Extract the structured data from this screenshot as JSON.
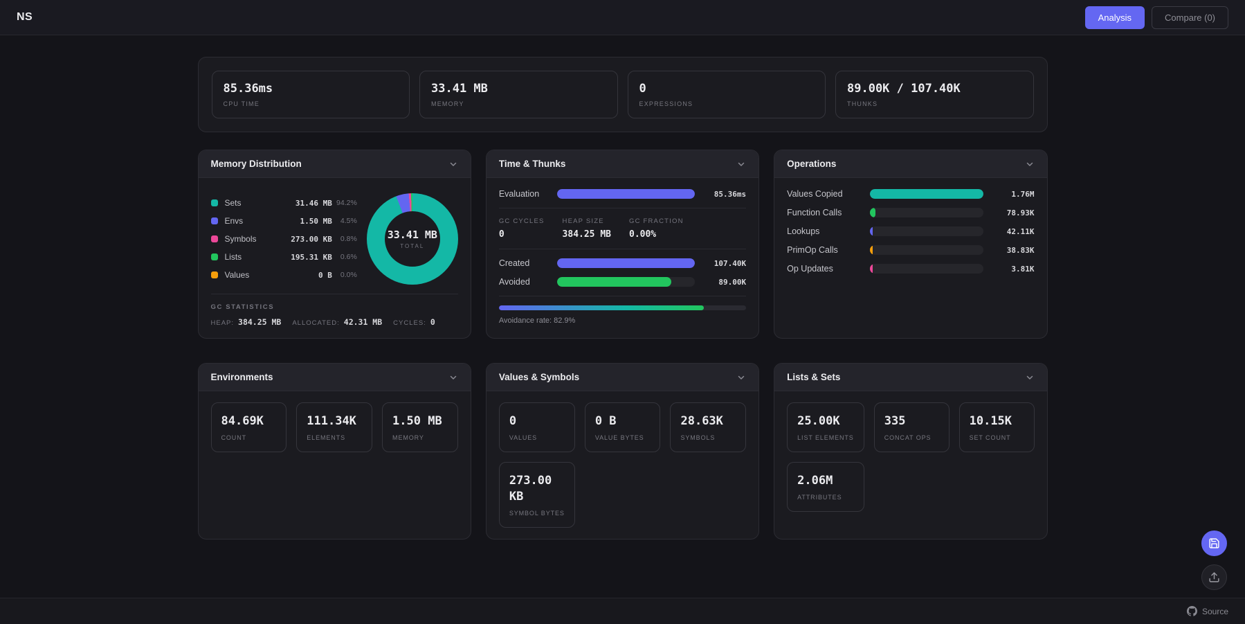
{
  "topbar": {
    "logo": "NS",
    "analysis_label": "Analysis",
    "compare_label": "Compare (0)"
  },
  "summary": {
    "cards": [
      {
        "value": "85.36ms",
        "label": "CPU TIME"
      },
      {
        "value": "33.41 MB",
        "label": "MEMORY"
      },
      {
        "value": "0",
        "label": "EXPRESSIONS"
      },
      {
        "value": "89.00K / 107.40K",
        "label": "THUNKS"
      }
    ]
  },
  "memory_distribution": {
    "title": "Memory Distribution",
    "items": [
      {
        "label": "Sets",
        "value": "31.46 MB",
        "pct_label": "94.2%",
        "pct": 94.2,
        "color": "#14b8a6"
      },
      {
        "label": "Envs",
        "value": "1.50 MB",
        "pct_label": "4.5%",
        "pct": 4.5,
        "color": "#6366f1"
      },
      {
        "label": "Symbols",
        "value": "273.00 KB",
        "pct_label": "0.8%",
        "pct": 0.8,
        "color": "#ec4899"
      },
      {
        "label": "Lists",
        "value": "195.31 KB",
        "pct_label": "0.6%",
        "pct": 0.6,
        "color": "#22c55e"
      },
      {
        "label": "Values",
        "value": "0 B",
        "pct_label": "0.0%",
        "pct": 0.0,
        "color": "#f59e0b"
      }
    ],
    "total_value": "33.41 MB",
    "total_label": "TOTAL",
    "gc": {
      "heading": "GC STATISTICS",
      "stats": [
        {
          "label": "HEAP:",
          "value": "384.25 MB"
        },
        {
          "label": "ALLOCATED:",
          "value": "42.31 MB"
        },
        {
          "label": "CYCLES:",
          "value": "0"
        }
      ]
    }
  },
  "time_thunks": {
    "title": "Time & Thunks",
    "evaluation": {
      "label": "Evaluation",
      "value": "85.36ms",
      "pct": 100,
      "color": "#6366f1"
    },
    "gc_row": [
      {
        "label": "GC CYCLES",
        "value": "0"
      },
      {
        "label": "HEAP SIZE",
        "value": "384.25 MB"
      },
      {
        "label": "GC FRACTION",
        "value": "0.00%"
      }
    ],
    "created": {
      "label": "Created",
      "value": "107.40K",
      "pct": 100,
      "color": "#6366f1"
    },
    "avoided": {
      "label": "Avoided",
      "value": "89.00K",
      "pct": 82.9,
      "color": "#22c55e"
    },
    "avoidance": {
      "label": "Avoidance rate:",
      "value": "82.9%",
      "pct": 82.9
    }
  },
  "operations": {
    "title": "Operations",
    "rows": [
      {
        "label": "Values Copied",
        "value": "1.76M",
        "pct": 100,
        "color": "#14b8a6"
      },
      {
        "label": "Function Calls",
        "value": "78.93K",
        "pct": 4.5,
        "color": "#22c55e"
      },
      {
        "label": "Lookups",
        "value": "42.11K",
        "pct": 2.4,
        "color": "#6366f1"
      },
      {
        "label": "PrimOp Calls",
        "value": "38.83K",
        "pct": 2.2,
        "color": "#f59e0b"
      },
      {
        "label": "Op Updates",
        "value": "3.81K",
        "pct": 0.3,
        "color": "#ec4899"
      }
    ]
  },
  "environments": {
    "title": "Environments",
    "cards": [
      {
        "value": "84.69K",
        "label": "COUNT"
      },
      {
        "value": "111.34K",
        "label": "ELEMENTS"
      },
      {
        "value": "1.50 MB",
        "label": "MEMORY"
      }
    ]
  },
  "values_symbols": {
    "title": "Values & Symbols",
    "cards": [
      {
        "value": "0",
        "label": "VALUES"
      },
      {
        "value": "0 B",
        "label": "VALUE BYTES"
      },
      {
        "value": "28.63K",
        "label": "SYMBOLS"
      },
      {
        "value": "273.00 KB",
        "label": "SYMBOL BYTES"
      }
    ]
  },
  "lists_sets": {
    "title": "Lists & Sets",
    "cards": [
      {
        "value": "25.00K",
        "label": "LIST ELEMENTS"
      },
      {
        "value": "335",
        "label": "CONCAT OPS"
      },
      {
        "value": "10.15K",
        "label": "SET COUNT"
      },
      {
        "value": "2.06M",
        "label": "ATTRIBUTES"
      }
    ]
  },
  "footer": {
    "source_label": "Source"
  },
  "icons": {
    "panel_collapse": "chevron-down-icon",
    "save": "save-icon",
    "share": "upload-icon",
    "source": "github-icon"
  },
  "colors": {
    "accent": "#6467f2",
    "teal": "#14b8a6",
    "green": "#22c55e",
    "pink": "#ec4899",
    "orange": "#f59e0b"
  }
}
